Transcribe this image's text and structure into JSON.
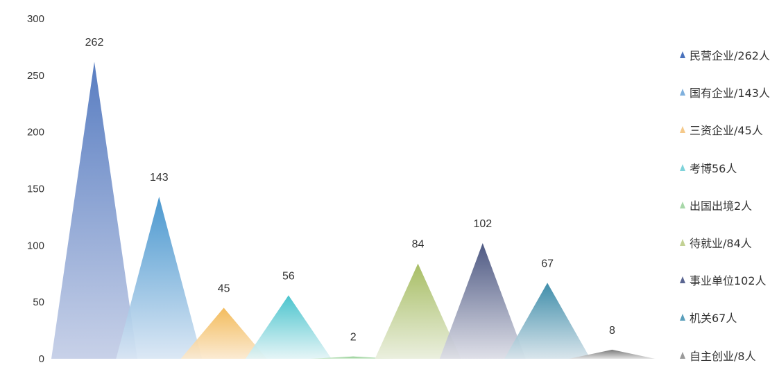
{
  "chart_data": {
    "type": "bar",
    "categories": [
      "民营企业",
      "国有企业",
      "三资企业",
      "考博",
      "出国出境",
      "待就业",
      "事业单位",
      "机关",
      "自主创业"
    ],
    "values": [
      262,
      143,
      45,
      56,
      2,
      84,
      102,
      67,
      8
    ],
    "data_labels": [
      "262",
      "143",
      "45",
      "56",
      "2",
      "84",
      "102",
      "67",
      "8"
    ],
    "ylim": [
      0,
      300
    ],
    "yticks": [
      "0",
      "50",
      "100",
      "150",
      "200",
      "250",
      "300"
    ],
    "grid": false,
    "legend_position": "right",
    "colors": [
      {
        "top": "#4a72bc",
        "bottom": "#c3cde6"
      },
      {
        "top": "#3b8fcb",
        "bottom": "#d9e6f4"
      },
      {
        "top": "#f2b64f",
        "bottom": "#fbe9cf"
      },
      {
        "top": "#3bbfc9",
        "bottom": "#e3f4f6"
      },
      {
        "top": "#6fbf70",
        "bottom": "#d6edd6"
      },
      {
        "top": "#a0b857",
        "bottom": "#e9eedc"
      },
      {
        "top": "#3e4a78",
        "bottom": "#dcdde6"
      },
      {
        "top": "#2f84a3",
        "bottom": "#d6e3ea"
      },
      {
        "top": "#6e6e6e",
        "bottom": "#e0e0e0"
      }
    ],
    "legend": [
      {
        "label": "民营企业/262人",
        "color": "#4a72bc"
      },
      {
        "label": "国有企业/143人",
        "color": "#7fb0dd"
      },
      {
        "label": "三资企业/45人",
        "color": "#f5c98a"
      },
      {
        "label": "考博56人",
        "color": "#7fd3da"
      },
      {
        "label": "出国出境2人",
        "color": "#a7d7a8"
      },
      {
        "label": "待就业/84人",
        "color": "#c2d193"
      },
      {
        "label": "事业单位102人",
        "color": "#5a6591"
      },
      {
        "label": "机关67人",
        "color": "#5a9fbb"
      },
      {
        "label": "自主创业/8人",
        "color": "#9a9a9a"
      }
    ]
  }
}
